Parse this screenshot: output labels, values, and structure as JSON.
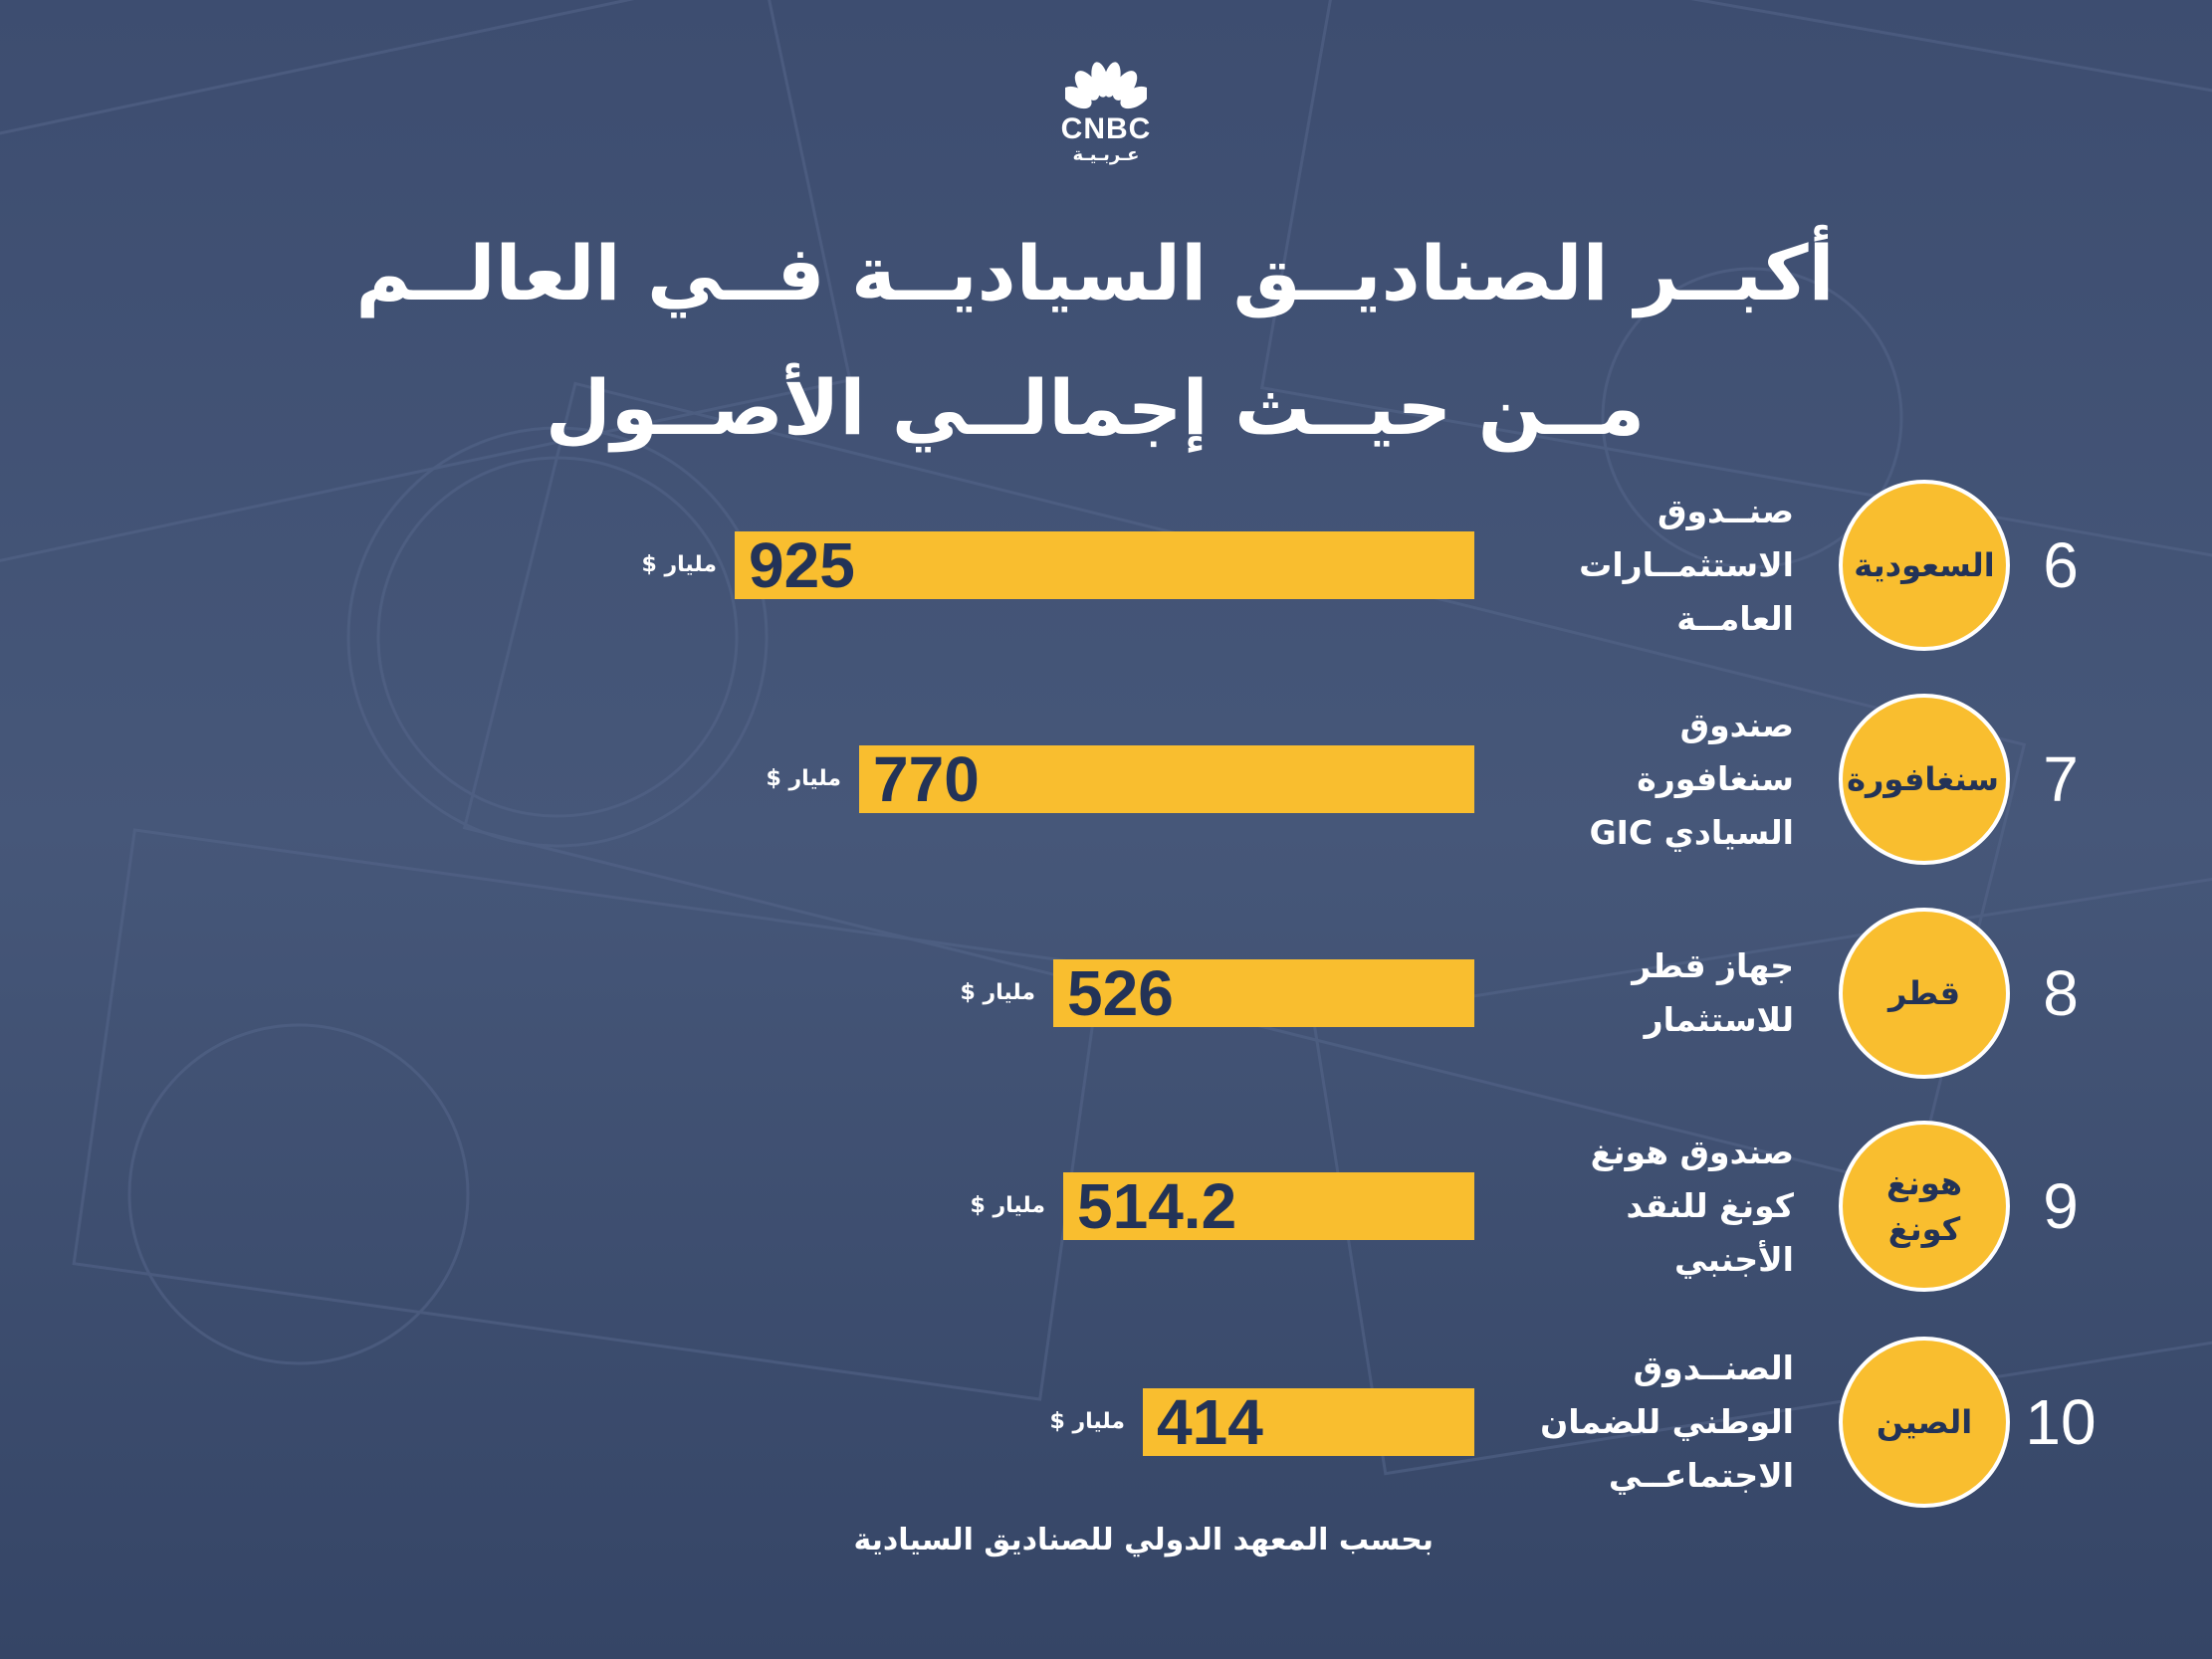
{
  "logo": {
    "brand": "CNBC",
    "sub": "عـربـيـة"
  },
  "title": {
    "line1": "أكبــر الصناديــق السياديــة فــي العالــم",
    "line2": "مــن حيــث إجمالــي الأصــول"
  },
  "chart_data": {
    "type": "bar",
    "orientation": "horizontal",
    "title": "أكبــر الصناديــق السياديــة فــي العالــم مــن حيــث إجمالــي الأصــول",
    "unit": "مليار $",
    "xlim": [
      0,
      925
    ],
    "rows": [
      {
        "rank": "6",
        "country": "السعودية",
        "fund_lines": [
          "صنــدوق",
          "الاستثمــارات",
          "العامــة"
        ],
        "value": 925,
        "value_label": "925"
      },
      {
        "rank": "7",
        "country": "سنغافورة",
        "fund_lines": [
          "صندوق",
          "سنغافورة",
          "السيادي GIC"
        ],
        "value": 770,
        "value_label": "770"
      },
      {
        "rank": "8",
        "country": "قطر",
        "fund_lines": [
          "جهاز قطر",
          "للاستثمار"
        ],
        "value": 526,
        "value_label": "526"
      },
      {
        "rank": "9",
        "country": "هونغ كونغ",
        "fund_lines": [
          "صندوق هونغ",
          "كونغ للنقد",
          "الأجنبي"
        ],
        "value": 514.2,
        "value_label": "514.2"
      },
      {
        "rank": "10",
        "country": "الصين",
        "fund_lines": [
          "الصنــدوق",
          "الوطني للضمان",
          "الاجتماعــي"
        ],
        "value": 414,
        "value_label": "414"
      }
    ]
  },
  "source": "بحسب المعهد الدولي للصناديق السيادية",
  "colors": {
    "background": "#3a4a6c",
    "accent": "#f9be2f",
    "bar_text": "#233357",
    "text": "#ffffff"
  }
}
